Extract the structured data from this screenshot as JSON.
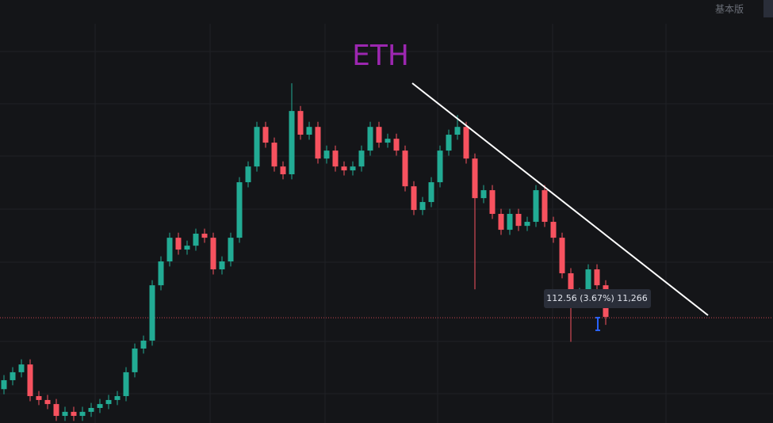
{
  "header": {
    "mode": "基本版"
  },
  "chart_data": {
    "type": "candlestick",
    "title": "ETH",
    "annotation": "112.56 (3.67%) 11,266",
    "up_color": "#22ab94",
    "down_color": "#f7525f",
    "ylim": [
      2000,
      4500
    ],
    "price_line": 2622,
    "open": [
      2200,
      2253,
      2300,
      2346,
      2159,
      2136,
      2112,
      2042,
      2066,
      2042,
      2066,
      2089,
      2112,
      2136,
      2159,
      2300,
      2440,
      2487,
      2814,
      2955,
      3095,
      3025,
      3048,
      3119,
      3095,
      2908,
      2955,
      3095,
      3423,
      3516,
      3750,
      3657,
      3516,
      3470,
      3844,
      3704,
      3750,
      3563,
      3610,
      3516,
      3493,
      3516,
      3610,
      3750,
      3657,
      3680,
      3610,
      3399,
      3259,
      3306,
      3423,
      3610,
      3704,
      3750,
      3563,
      3329,
      3376,
      3236,
      3142,
      3236,
      3165,
      3189,
      3376,
      3189,
      3095,
      2885,
      2721,
      2768,
      2908,
      2814
    ],
    "high": [
      2283,
      2330,
      2376,
      2376,
      2189,
      2166,
      2142,
      2096,
      2096,
      2096,
      2119,
      2142,
      2166,
      2189,
      2330,
      2470,
      2517,
      2844,
      2985,
      3125,
      3125,
      3078,
      3149,
      3149,
      3125,
      2985,
      3125,
      3453,
      3546,
      3780,
      3780,
      3687,
      3546,
      4008,
      3874,
      3780,
      3780,
      3640,
      3640,
      3546,
      3546,
      3640,
      3780,
      3780,
      3710,
      3710,
      3640,
      3429,
      3336,
      3453,
      3640,
      3734,
      3820,
      3780,
      3593,
      3406,
      3406,
      3266,
      3266,
      3266,
      3219,
      3406,
      3406,
      3219,
      3125,
      2915,
      2798,
      2938,
      2938,
      2844
    ],
    "low": [
      2170,
      2223,
      2270,
      2129,
      2106,
      2082,
      2012,
      2012,
      2012,
      2012,
      2036,
      2059,
      2082,
      2106,
      2129,
      2270,
      2410,
      2457,
      2784,
      2925,
      2995,
      2995,
      3018,
      3065,
      2878,
      2878,
      2925,
      3065,
      3393,
      3486,
      3627,
      3486,
      3440,
      3440,
      3674,
      3674,
      3533,
      3533,
      3486,
      3463,
      3463,
      3486,
      3580,
      3627,
      3627,
      3580,
      3369,
      3229,
      3229,
      3276,
      3393,
      3580,
      3674,
      3533,
      2790,
      3299,
      3206,
      3112,
      3112,
      3135,
      3135,
      3159,
      3159,
      3065,
      2855,
      2480,
      2691,
      2738,
      2784,
      2580
    ],
    "close": [
      2253,
      2300,
      2346,
      2159,
      2136,
      2112,
      2042,
      2066,
      2042,
      2066,
      2089,
      2112,
      2136,
      2159,
      2300,
      2440,
      2487,
      2814,
      2955,
      3095,
      3025,
      3048,
      3119,
      3095,
      2908,
      2955,
      3095,
      3423,
      3516,
      3750,
      3657,
      3516,
      3470,
      3844,
      3704,
      3750,
      3563,
      3610,
      3516,
      3493,
      3516,
      3610,
      3750,
      3657,
      3680,
      3610,
      3399,
      3259,
      3306,
      3423,
      3610,
      3704,
      3750,
      3563,
      3329,
      3376,
      3236,
      3142,
      3236,
      3165,
      3189,
      3376,
      3189,
      3095,
      2885,
      2721,
      2768,
      2908,
      2814,
      2627
    ]
  }
}
